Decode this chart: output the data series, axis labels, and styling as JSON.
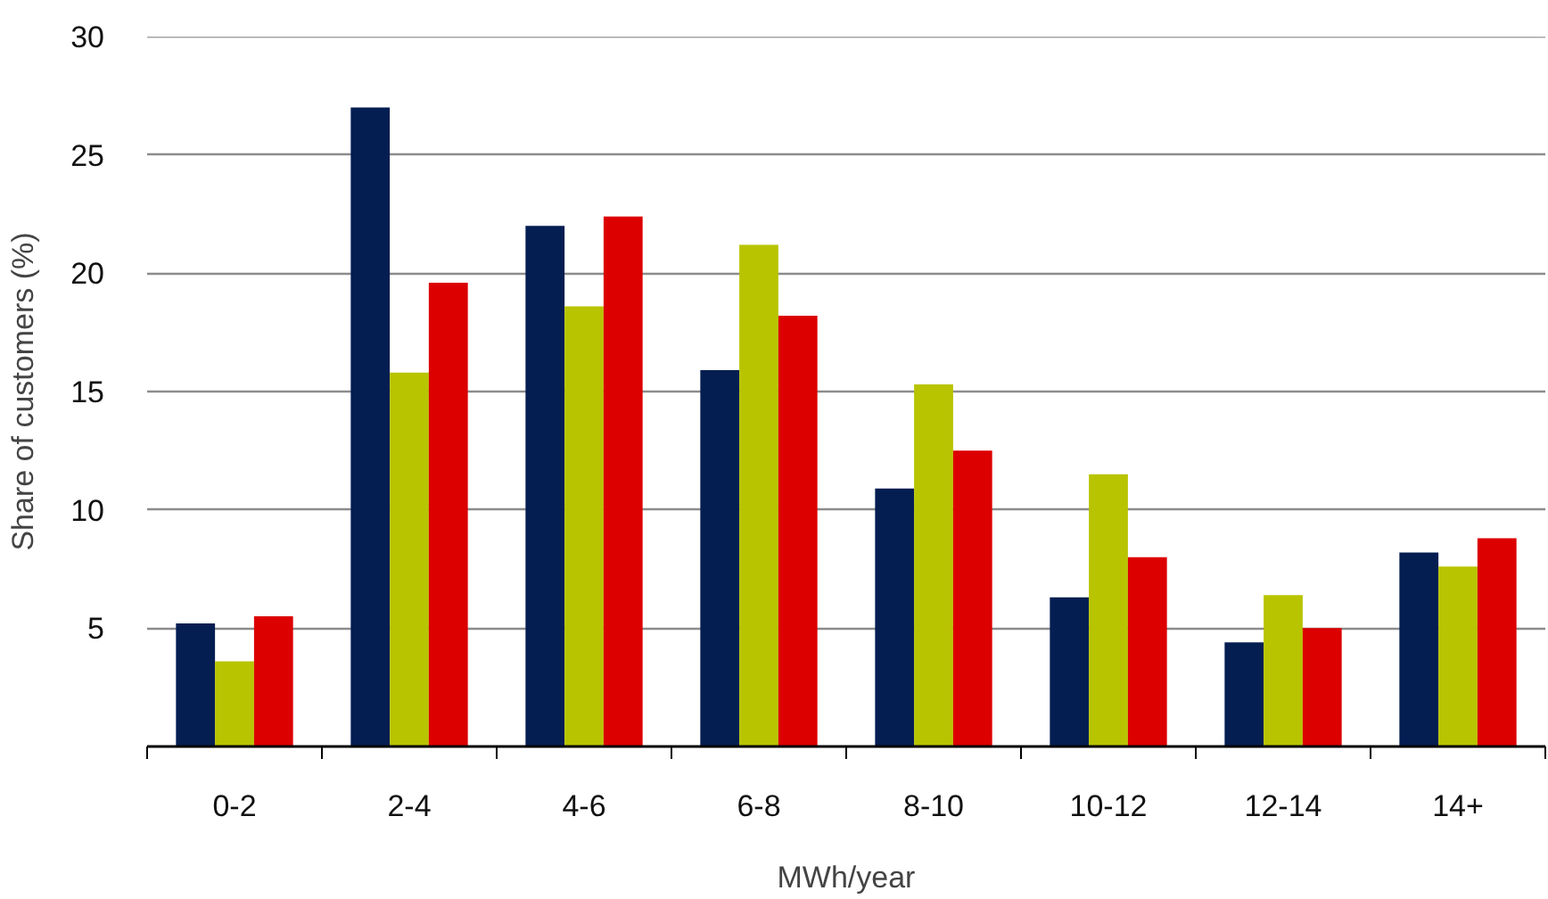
{
  "chart_data": {
    "type": "bar",
    "categories": [
      "0-2",
      "2-4",
      "4-6",
      "6-8",
      "8-10",
      "10-12",
      "12-14",
      "14+"
    ],
    "series": [
      {
        "color": "#041e52",
        "values": [
          5.2,
          27.0,
          22.0,
          15.9,
          10.9,
          6.3,
          4.4,
          8.2
        ]
      },
      {
        "color": "#b8c400",
        "values": [
          3.6,
          15.8,
          18.6,
          21.2,
          15.3,
          11.5,
          6.4,
          7.6
        ]
      },
      {
        "color": "#dc0000",
        "values": [
          5.5,
          19.6,
          22.4,
          18.2,
          12.5,
          8.0,
          5.0,
          8.8
        ]
      }
    ],
    "xlabel": "MWh/year",
    "ylabel": "Share of customers (%)",
    "ylim": [
      0,
      30
    ],
    "yticks": [
      5,
      10,
      15,
      20,
      25,
      30
    ],
    "grid": "y"
  }
}
